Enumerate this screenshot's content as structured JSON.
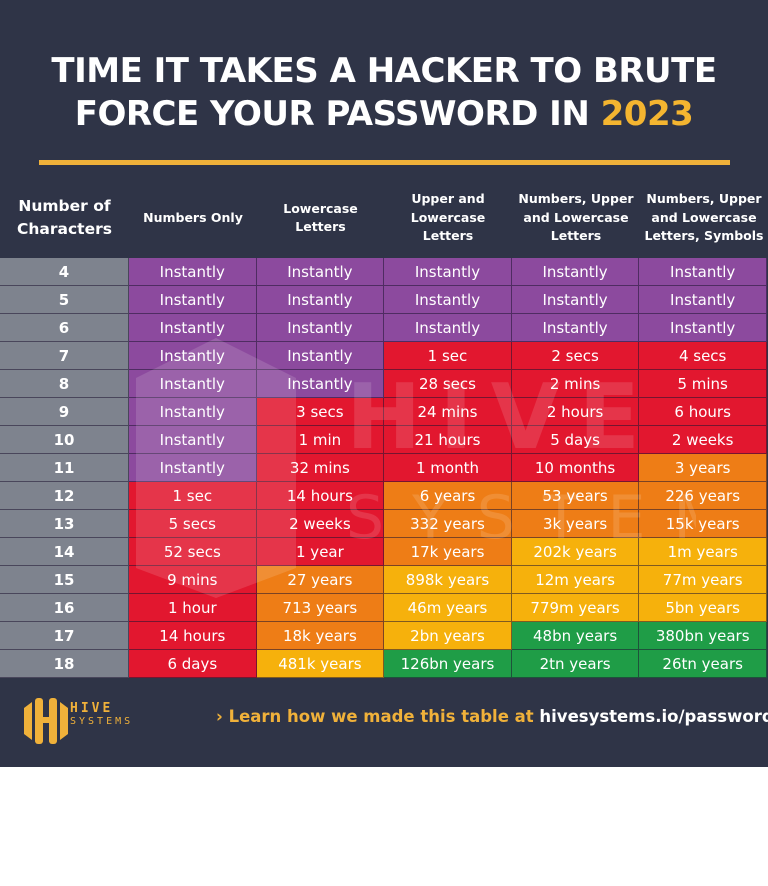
{
  "title": {
    "line1": "TIME IT TAKES A HACKER TO BRUTE",
    "line2_prefix": "FORCE YOUR PASSWORD IN ",
    "year": "2023"
  },
  "colors": {
    "background": "#2f3447",
    "accent_yellow": "#f0b13a",
    "instantly_purple": "#8c4a9e",
    "seconds_to_years_red": "#e2172f",
    "years_orange": "#ee7d16",
    "long_years_amber": "#f6b10c",
    "very_long_green": "#1f9d47",
    "character_column_gray": "#7e838e"
  },
  "table": {
    "headers": [
      "Number of Characters",
      "Numbers Only",
      "Lowercase Letters",
      "Upper and Lowercase Letters",
      "Numbers, Upper and Lowercase Letters",
      "Numbers, Upper and Lowercase Letters, Symbols"
    ],
    "header_lines": [
      [
        "Number of",
        "Characters"
      ],
      [
        "Numbers Only"
      ],
      [
        "Lowercase",
        "Letters"
      ],
      [
        "Upper and",
        "Lowercase",
        "Letters"
      ],
      [
        "Numbers, Upper",
        "and Lowercase",
        "Letters"
      ],
      [
        "Numbers, Upper",
        "and Lowercase",
        "Letters, Symbols"
      ]
    ],
    "rows": [
      {
        "chars": "4",
        "values": [
          "Instantly",
          "Instantly",
          "Instantly",
          "Instantly",
          "Instantly"
        ],
        "colors": [
          "purple",
          "purple",
          "purple",
          "purple",
          "purple"
        ]
      },
      {
        "chars": "5",
        "values": [
          "Instantly",
          "Instantly",
          "Instantly",
          "Instantly",
          "Instantly"
        ],
        "colors": [
          "purple",
          "purple",
          "purple",
          "purple",
          "purple"
        ]
      },
      {
        "chars": "6",
        "values": [
          "Instantly",
          "Instantly",
          "Instantly",
          "Instantly",
          "Instantly"
        ],
        "colors": [
          "purple",
          "purple",
          "purple",
          "purple",
          "purple"
        ]
      },
      {
        "chars": "7",
        "values": [
          "Instantly",
          "Instantly",
          "1 sec",
          "2 secs",
          "4 secs"
        ],
        "colors": [
          "purple",
          "purple",
          "red",
          "red",
          "red"
        ]
      },
      {
        "chars": "8",
        "values": [
          "Instantly",
          "Instantly",
          "28 secs",
          "2 mins",
          "5 mins"
        ],
        "colors": [
          "purple",
          "purple",
          "red",
          "red",
          "red"
        ]
      },
      {
        "chars": "9",
        "values": [
          "Instantly",
          "3 secs",
          "24 mins",
          "2 hours",
          "6 hours"
        ],
        "colors": [
          "purple",
          "red",
          "red",
          "red",
          "red"
        ]
      },
      {
        "chars": "10",
        "values": [
          "Instantly",
          "1 min",
          "21 hours",
          "5 days",
          "2 weeks"
        ],
        "colors": [
          "purple",
          "red",
          "red",
          "red",
          "red"
        ]
      },
      {
        "chars": "11",
        "values": [
          "Instantly",
          "32 mins",
          "1 month",
          "10 months",
          "3 years"
        ],
        "colors": [
          "purple",
          "red",
          "red",
          "red",
          "orange"
        ]
      },
      {
        "chars": "12",
        "values": [
          "1 sec",
          "14 hours",
          "6 years",
          "53 years",
          "226 years"
        ],
        "colors": [
          "red",
          "red",
          "orange",
          "orange",
          "orange"
        ]
      },
      {
        "chars": "13",
        "values": [
          "5 secs",
          "2 weeks",
          "332 years",
          "3k years",
          "15k years"
        ],
        "colors": [
          "red",
          "red",
          "orange",
          "orange",
          "orange"
        ]
      },
      {
        "chars": "14",
        "values": [
          "52 secs",
          "1 year",
          "17k years",
          "202k years",
          "1m years"
        ],
        "colors": [
          "red",
          "red",
          "orange",
          "amber",
          "amber"
        ]
      },
      {
        "chars": "15",
        "values": [
          "9 mins",
          "27 years",
          "898k years",
          "12m years",
          "77m years"
        ],
        "colors": [
          "red",
          "orange",
          "amber",
          "amber",
          "amber"
        ]
      },
      {
        "chars": "16",
        "values": [
          "1 hour",
          "713 years",
          "46m years",
          "779m years",
          "5bn years"
        ],
        "colors": [
          "red",
          "orange",
          "amber",
          "amber",
          "amber"
        ]
      },
      {
        "chars": "17",
        "values": [
          "14 hours",
          "18k years",
          "2bn years",
          "48bn years",
          "380bn years"
        ],
        "colors": [
          "red",
          "orange",
          "amber",
          "green",
          "green"
        ]
      },
      {
        "chars": "18",
        "values": [
          "6 days",
          "481k years",
          "126bn years",
          "2tn years",
          "26tn years"
        ],
        "colors": [
          "red",
          "amber",
          "green",
          "green",
          "green"
        ]
      }
    ]
  },
  "watermark": {
    "line1": "HIVE",
    "line2": "SYSTEMS"
  },
  "footer": {
    "logo_line1": "HIVE",
    "logo_line2": "SYSTEMS",
    "cta_arrow": "›",
    "cta_lead": "Learn how we made this table at ",
    "cta_link": "hivesystems.io/password"
  }
}
